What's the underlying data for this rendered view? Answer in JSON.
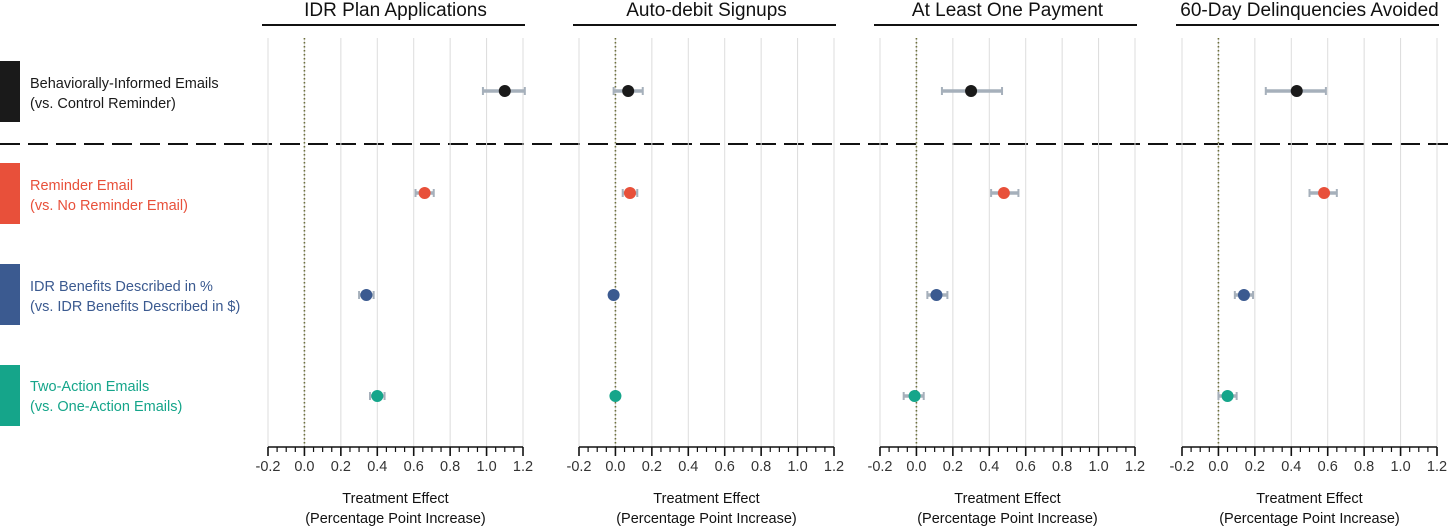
{
  "chart_data": {
    "type": "dot-whisker",
    "xlim": [
      -0.2,
      1.2
    ],
    "x_ticks": [
      "-0.2",
      "0.0",
      "0.2",
      "0.4",
      "0.6",
      "0.8",
      "1.0",
      "1.2"
    ],
    "xlabel_line1": "Treatment Effect",
    "xlabel_line2": "(Percentage Point Increase)",
    "rows": [
      {
        "line1": "Behaviorally-Informed Emails",
        "line2": "(vs. Control Reminder)",
        "color": "#1a1a1a"
      },
      {
        "line1": "Reminder Email",
        "line2": "(vs. No Reminder Email)",
        "color": "#e8503a"
      },
      {
        "line1": "IDR Benefits Described in %",
        "line2": "(vs. IDR Benefits Described in $)",
        "color": "#3b5a90"
      },
      {
        "line1": "Two-Action Emails",
        "line2": "(vs. One-Action Emails)",
        "color": "#15a58a"
      }
    ],
    "panels": [
      {
        "title": "IDR Plan Applications",
        "estimates": [
          {
            "value": 1.1,
            "ci": [
              0.98,
              1.21
            ]
          },
          {
            "value": 0.66,
            "ci": [
              0.61,
              0.71
            ]
          },
          {
            "value": 0.34,
            "ci": [
              0.3,
              0.38
            ]
          },
          {
            "value": 0.4,
            "ci": [
              0.36,
              0.44
            ]
          }
        ]
      },
      {
        "title": "Auto-debit Signups",
        "estimates": [
          {
            "value": 0.07,
            "ci": [
              -0.01,
              0.15
            ]
          },
          {
            "value": 0.08,
            "ci": [
              0.04,
              0.12
            ]
          },
          {
            "value": -0.01,
            "ci": [
              -0.02,
              0.01
            ]
          },
          {
            "value": 0.0,
            "ci": [
              -0.02,
              0.02
            ]
          }
        ]
      },
      {
        "title": "At Least One Payment",
        "estimates": [
          {
            "value": 0.3,
            "ci": [
              0.14,
              0.47
            ]
          },
          {
            "value": 0.48,
            "ci": [
              0.41,
              0.56
            ]
          },
          {
            "value": 0.11,
            "ci": [
              0.06,
              0.17
            ]
          },
          {
            "value": -0.01,
            "ci": [
              -0.07,
              0.04
            ]
          }
        ]
      },
      {
        "title": "60-Day Delinquencies Avoided",
        "estimates": [
          {
            "value": 0.43,
            "ci": [
              0.26,
              0.59
            ]
          },
          {
            "value": 0.58,
            "ci": [
              0.5,
              0.65
            ]
          },
          {
            "value": 0.14,
            "ci": [
              0.09,
              0.19
            ]
          },
          {
            "value": 0.05,
            "ci": [
              0.0,
              0.1
            ]
          }
        ]
      }
    ],
    "reference_line": 0.0,
    "grid": true,
    "whisker_color": "#a6b0bb",
    "reference_line_color": "#6b6e3a"
  }
}
